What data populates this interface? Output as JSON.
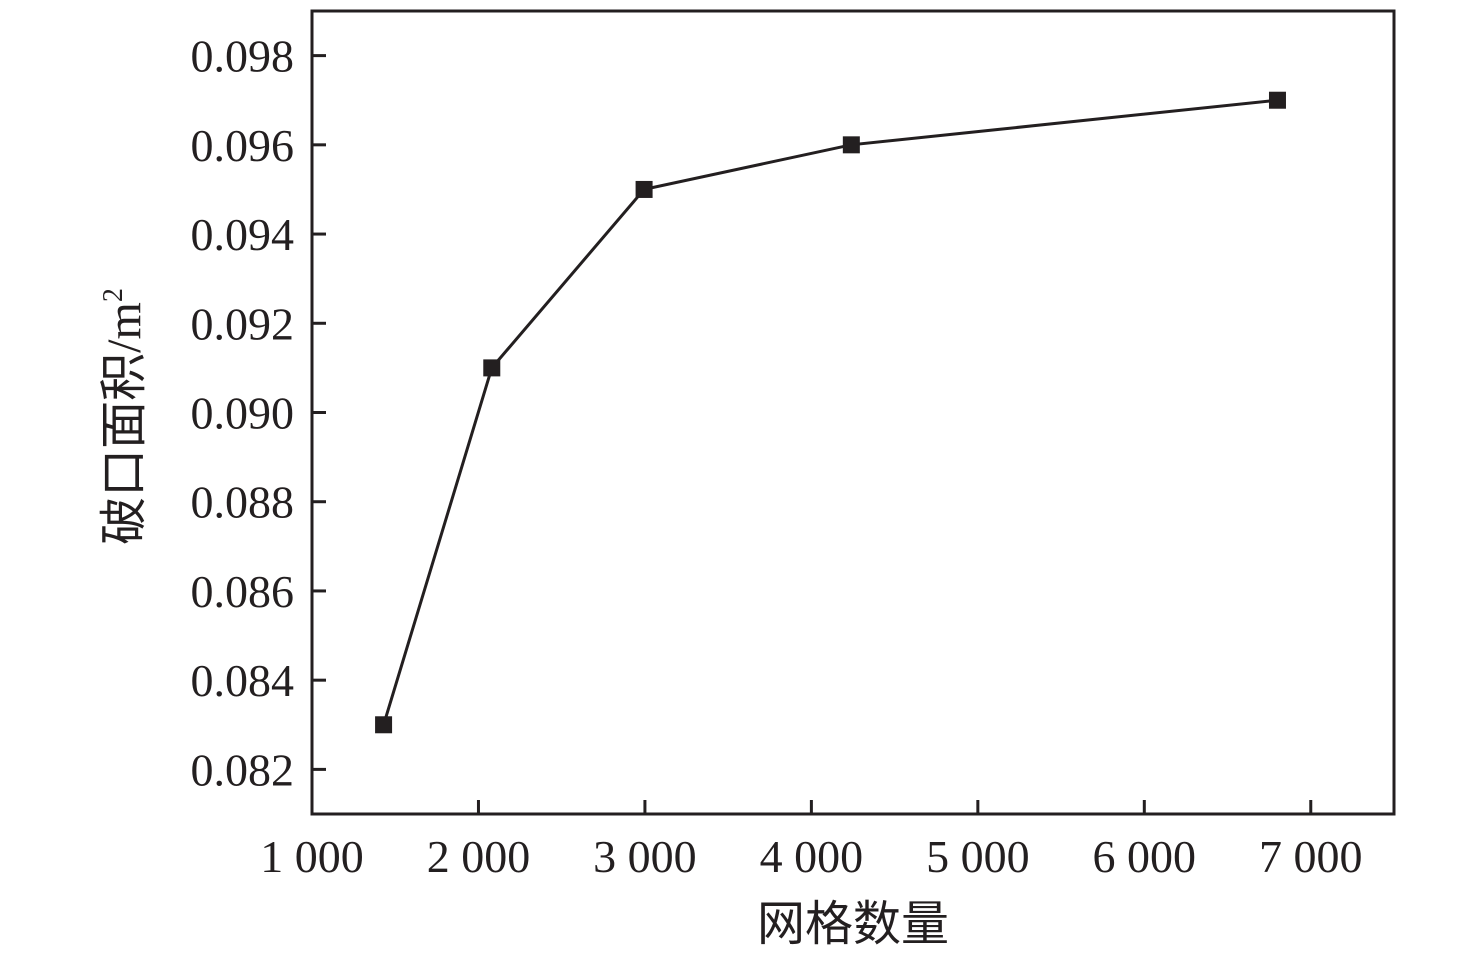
{
  "chart_data": {
    "type": "line",
    "xlabel": "网格数量",
    "ylabel": "破口面积/m",
    "ylabel_superscript": "2",
    "xlim": [
      1000,
      7500
    ],
    "ylim": [
      0.081,
      0.099
    ],
    "x_ticks": [
      1000,
      2000,
      3000,
      4000,
      5000,
      6000,
      7000
    ],
    "x_tick_labels": [
      "1 000",
      "2 000",
      "3 000",
      "4 000",
      "5 000",
      "6 000",
      "7 000"
    ],
    "y_ticks": [
      0.082,
      0.084,
      0.086,
      0.088,
      0.09,
      0.092,
      0.094,
      0.096,
      0.098
    ],
    "y_tick_labels": [
      "0.082",
      "0.084",
      "0.086",
      "0.088",
      "0.090",
      "0.092",
      "0.094",
      "0.096",
      "0.098"
    ],
    "grid": false,
    "marker": "square",
    "series": [
      {
        "x": [
          1430,
          2080,
          2995,
          4240,
          6800
        ],
        "y": [
          0.083,
          0.091,
          0.095,
          0.096,
          0.097
        ]
      }
    ]
  },
  "colors": {
    "ink": "#231f20",
    "background": "#ffffff"
  }
}
